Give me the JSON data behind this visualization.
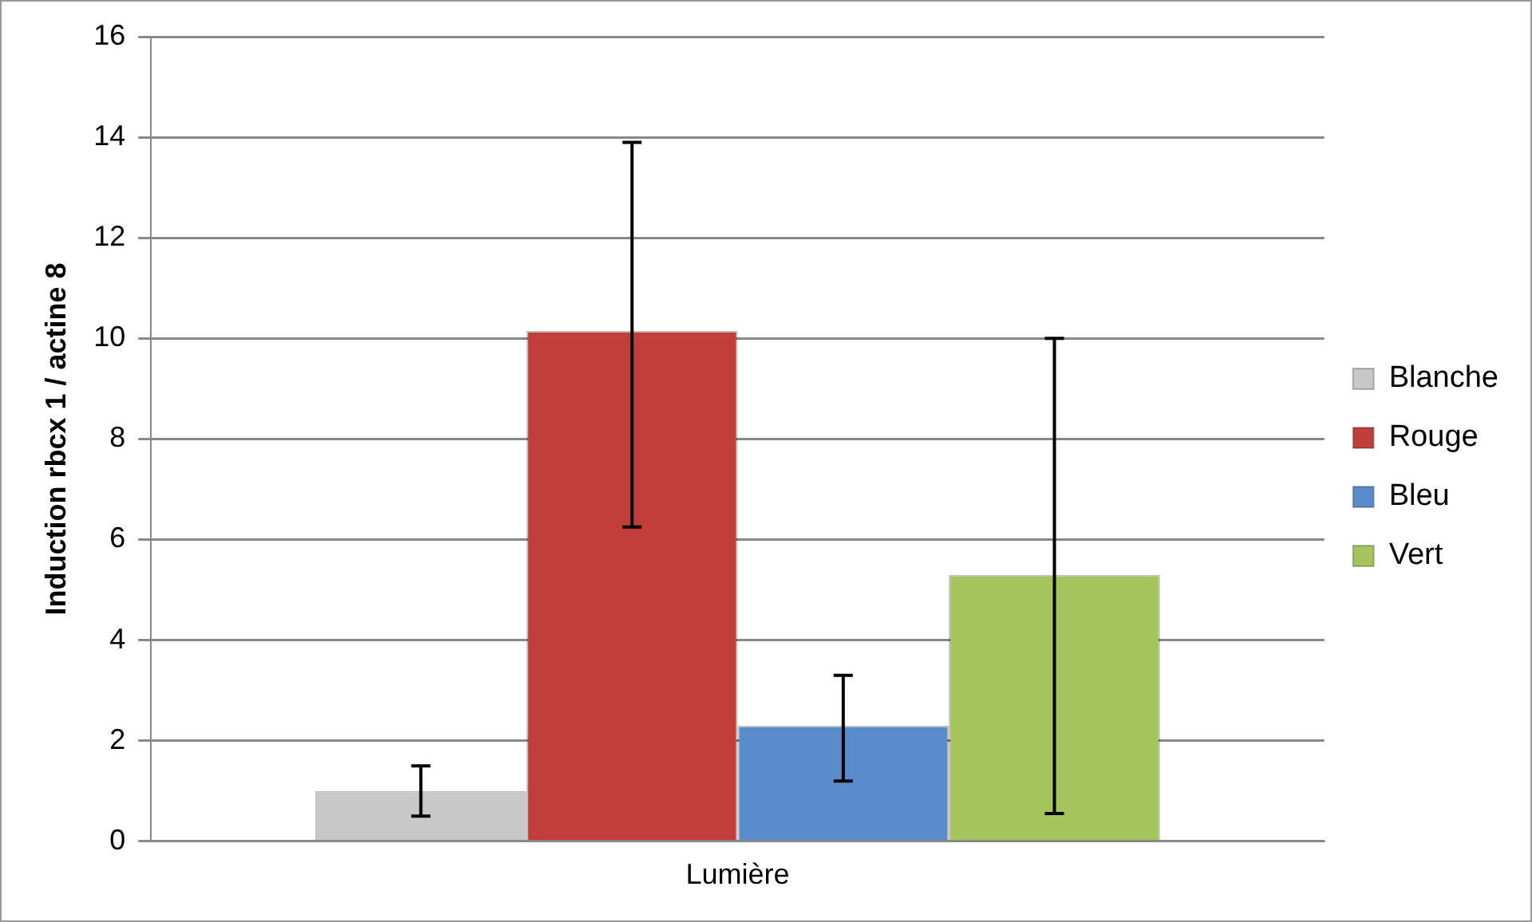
{
  "chart_data": {
    "type": "bar",
    "categories": [
      "Lumière"
    ],
    "ylabel": "Induction rbcx 1 / actine 8",
    "ylim": [
      0,
      16
    ],
    "yticks": [
      0,
      2,
      4,
      6,
      8,
      10,
      12,
      14,
      16
    ],
    "grid": "y",
    "legend": "right",
    "series": [
      {
        "name": "Blanche",
        "color": "#c8c8c8",
        "values": [
          1.0
        ],
        "errors": [
          [
            0.5,
            1.5
          ]
        ]
      },
      {
        "name": "Rouge",
        "color": "#c23e3a",
        "values": [
          10.15
        ],
        "errors": [
          [
            6.25,
            13.9
          ]
        ]
      },
      {
        "name": "Bleu",
        "color": "#5a8ccc",
        "values": [
          2.3
        ],
        "errors": [
          [
            1.2,
            3.3
          ]
        ]
      },
      {
        "name": "Vert",
        "color": "#a4c45c",
        "values": [
          5.3
        ],
        "errors": [
          [
            0.55,
            10.0
          ]
        ]
      }
    ]
  }
}
